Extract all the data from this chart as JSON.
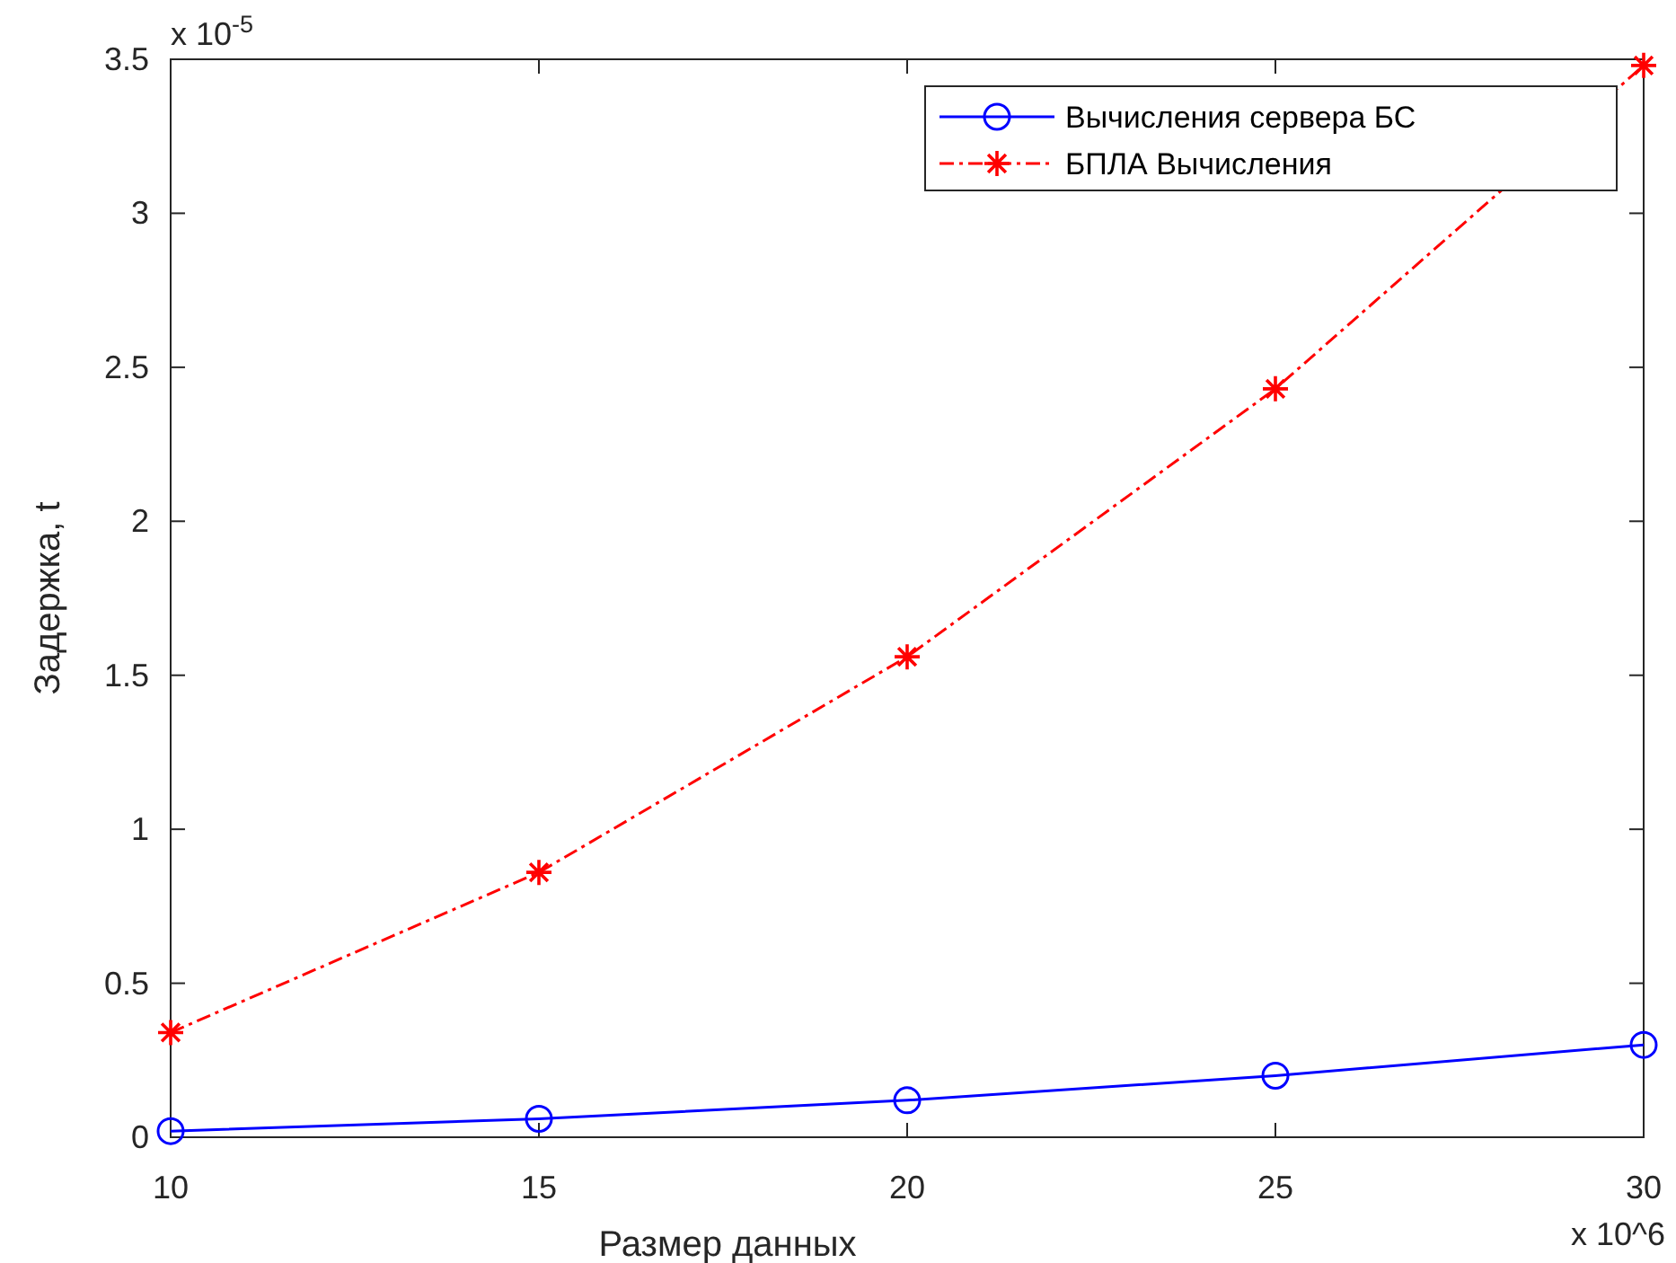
{
  "chart_data": {
    "type": "line",
    "xlabel": "Размер данных",
    "ylabel": "Задержка, t",
    "x": [
      10,
      15,
      20,
      25,
      30
    ],
    "series": [
      {
        "name": "Вычисления сервера БС",
        "color": "#0000ff",
        "values": [
          0.02,
          0.06,
          0.12,
          0.2,
          0.3
        ],
        "marker": "circle",
        "line_style": "solid"
      },
      {
        "name": "БПЛА Вычисления",
        "color": "#ff0000",
        "values": [
          0.34,
          0.86,
          1.56,
          2.43,
          3.48
        ],
        "marker": "cross",
        "line_style": "dashed"
      }
    ],
    "xlim": [
      10,
      30
    ],
    "xticks": [
      10,
      15,
      20,
      25,
      30
    ],
    "ylim": [
      0,
      3.5
    ],
    "yticks": [
      0,
      0.5,
      1,
      1.5,
      2,
      2.5,
      3,
      3.5
    ],
    "annotations": [
      "x 10$^{-5}$",
      "x 10^6"
    ],
    "grid": false,
    "legend": "top right"
  }
}
